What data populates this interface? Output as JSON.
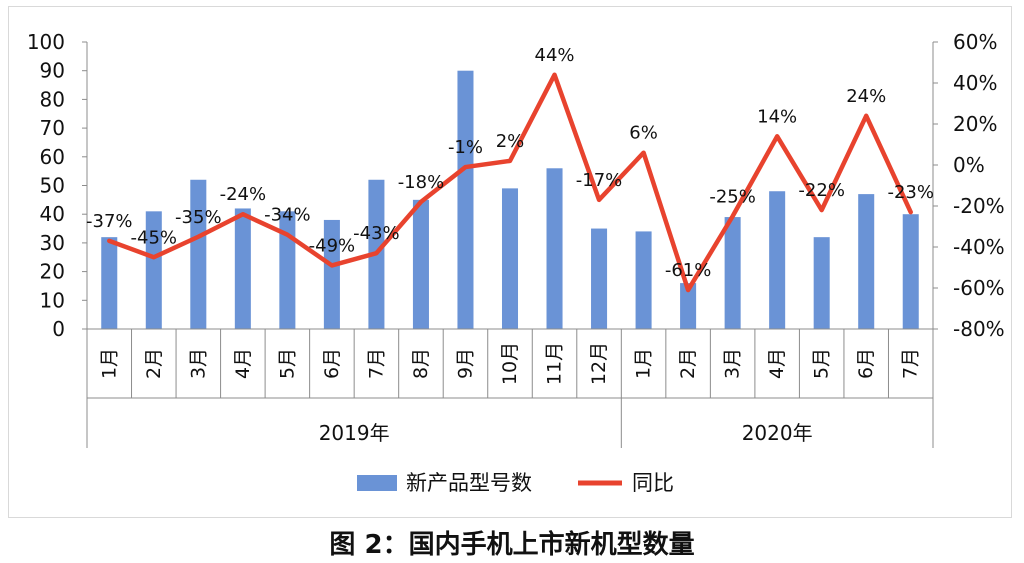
{
  "caption": "图 2：国内手机上市新机型数量",
  "chart_data": {
    "type": "bar",
    "categories": [
      "1月",
      "2月",
      "3月",
      "4月",
      "5月",
      "6月",
      "7月",
      "8月",
      "9月",
      "10月",
      "11月",
      "12月",
      "1月",
      "2月",
      "3月",
      "4月",
      "5月",
      "6月",
      "7月"
    ],
    "groups": [
      {
        "label": "2019年",
        "count": 12
      },
      {
        "label": "2020年",
        "count": 7
      }
    ],
    "series": [
      {
        "name": "新产品型号数",
        "type": "bar",
        "axis": "left",
        "color": "#6a93d6",
        "values": [
          32,
          41,
          52,
          42,
          41,
          38,
          52,
          45,
          90,
          49,
          56,
          35,
          34,
          16,
          39,
          48,
          32,
          47,
          40
        ]
      },
      {
        "name": "同比",
        "type": "line",
        "axis": "right",
        "color": "#e8432e",
        "values": [
          -37,
          -45,
          -35,
          -24,
          -34,
          -49,
          -43,
          -18,
          -1,
          2,
          44,
          -17,
          6,
          -61,
          -25,
          14,
          -22,
          24,
          -23
        ],
        "labels": [
          "-37%",
          "-45%",
          "-35%",
          "-24%",
          "-34%",
          "-49%",
          "-43%",
          "-18%",
          "-1%",
          "2%",
          "44%",
          "-17%",
          "6%",
          "-61%",
          "-25%",
          "14%",
          "-22%",
          "24%",
          "-23%"
        ]
      }
    ],
    "y_left": {
      "min": 0,
      "max": 100,
      "ticks": [
        "0",
        "10",
        "20",
        "30",
        "40",
        "50",
        "60",
        "70",
        "80",
        "90",
        "100"
      ]
    },
    "y_right": {
      "min": -80,
      "max": 60,
      "ticks": [
        "-80%",
        "-60%",
        "-40%",
        "-20%",
        "0%",
        "20%",
        "40%",
        "60%"
      ]
    },
    "legend": {
      "placement": "bottom",
      "items": [
        "新产品型号数",
        "同比"
      ]
    }
  }
}
